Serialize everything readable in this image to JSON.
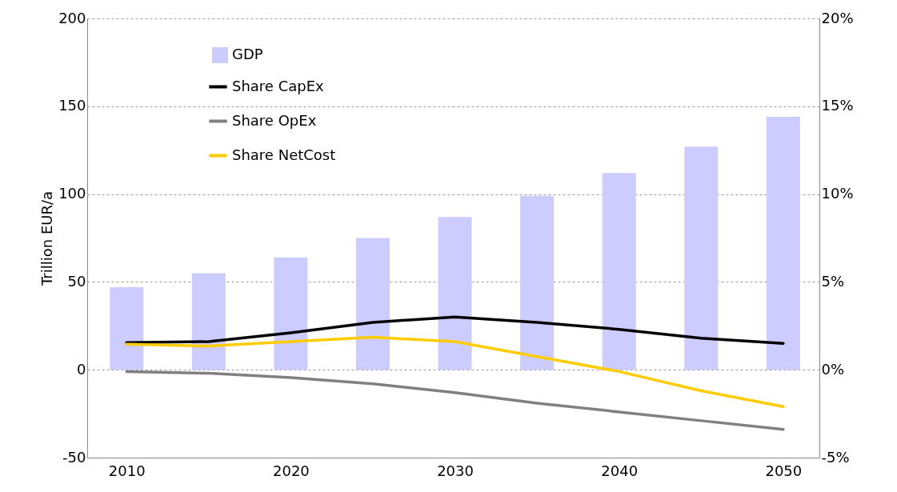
{
  "chart_data": {
    "type": "bar",
    "ylabel": "Trillion EUR/a",
    "x": [
      2010,
      2015,
      2020,
      2025,
      2030,
      2035,
      2040,
      2045,
      2050
    ],
    "xlim": [
      2007.6,
      2052.2
    ],
    "xticks": [
      2010,
      2020,
      2030,
      2040,
      2050
    ],
    "ylim": [
      -50,
      200
    ],
    "yticks": [
      -50,
      0,
      50,
      100,
      150,
      200
    ],
    "y2lim": [
      -5,
      20
    ],
    "y2ticks": [
      {
        "value": -5,
        "label": "-5%"
      },
      {
        "value": 0,
        "label": "0%"
      },
      {
        "value": 5,
        "label": "5%"
      },
      {
        "value": 10,
        "label": "10%"
      },
      {
        "value": 15,
        "label": "15%"
      },
      {
        "value": 20,
        "label": "20%"
      }
    ],
    "grid": "y",
    "legend": "top left",
    "series": [
      {
        "name": "GDP",
        "color": "#ccccff",
        "values": [
          47,
          55,
          64,
          75,
          87,
          99,
          112,
          127,
          144
        ]
      },
      {
        "name": "Share CapEx",
        "type": "line",
        "axis": "y2",
        "color": "#000000",
        "values": [
          1.55,
          1.6,
          2.1,
          2.7,
          3.0,
          2.7,
          2.3,
          1.8,
          1.5
        ]
      },
      {
        "name": "Share OpEx",
        "type": "line",
        "axis": "y2",
        "color": "#808080",
        "values": [
          -0.1,
          -0.2,
          -0.45,
          -0.8,
          -1.3,
          -1.9,
          -2.4,
          -2.9,
          -3.4
        ]
      },
      {
        "name": "Share NetCost",
        "type": "line",
        "axis": "y2",
        "color": "#ffcc00",
        "values": [
          1.45,
          1.35,
          1.6,
          1.85,
          1.6,
          0.75,
          -0.1,
          -1.2,
          -2.1
        ]
      }
    ]
  }
}
